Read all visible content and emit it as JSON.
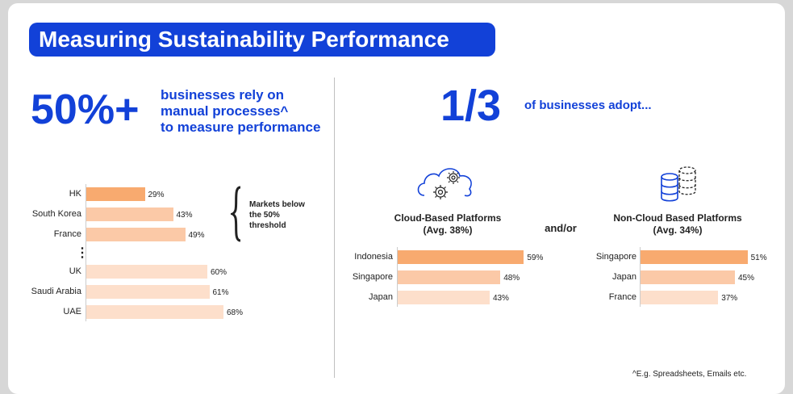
{
  "title": "Measuring Sustainability Performance",
  "left": {
    "stat": "50%+",
    "stat_text": [
      "businesses rely on",
      "manual processes^",
      "to measure performance"
    ],
    "brace_text": [
      "Markets below",
      "the 50%",
      "threshold"
    ],
    "ellipsis": "⋮"
  },
  "right": {
    "stat": "1/3",
    "stat_text": "of businesses adopt...",
    "cloud_title": [
      "Cloud-Based Platforms",
      "(Avg. 38%)"
    ],
    "noncloud_title": [
      "Non-Cloud Based Platforms",
      "(Avg. 34%)"
    ],
    "connector": "and/or"
  },
  "footnote": "^E.g. Spreadsheets, Emails etc.",
  "colors": {
    "accent": "#1241d8",
    "bar_dark": "#f8aa6f",
    "bar_mid": "#fbc9a7",
    "bar_light": "#fddfcb"
  },
  "icons": [
    "cloud-gear-icon",
    "database-icon",
    "curly-brace-icon"
  ],
  "chart_data": [
    {
      "type": "bar",
      "orientation": "horizontal",
      "categories": [
        "HK",
        "South Korea",
        "France",
        "UK",
        "Saudi Arabia",
        "UAE"
      ],
      "values": [
        29,
        43,
        49,
        60,
        61,
        68
      ],
      "value_labels": [
        "29%",
        "43%",
        "49%",
        "60%",
        "61%",
        "68%"
      ],
      "unit": "%"
    },
    {
      "type": "bar",
      "orientation": "horizontal",
      "categories": [
        "Indonesia",
        "Singapore",
        "Japan"
      ],
      "values": [
        59,
        48,
        43
      ],
      "value_labels": [
        "59%",
        "48%",
        "43%"
      ],
      "unit": "%"
    },
    {
      "type": "bar",
      "orientation": "horizontal",
      "categories": [
        "Singapore",
        "Japan",
        "France"
      ],
      "values": [
        51,
        45,
        37
      ],
      "value_labels": [
        "51%",
        "45%",
        "37%"
      ],
      "unit": "%"
    }
  ]
}
